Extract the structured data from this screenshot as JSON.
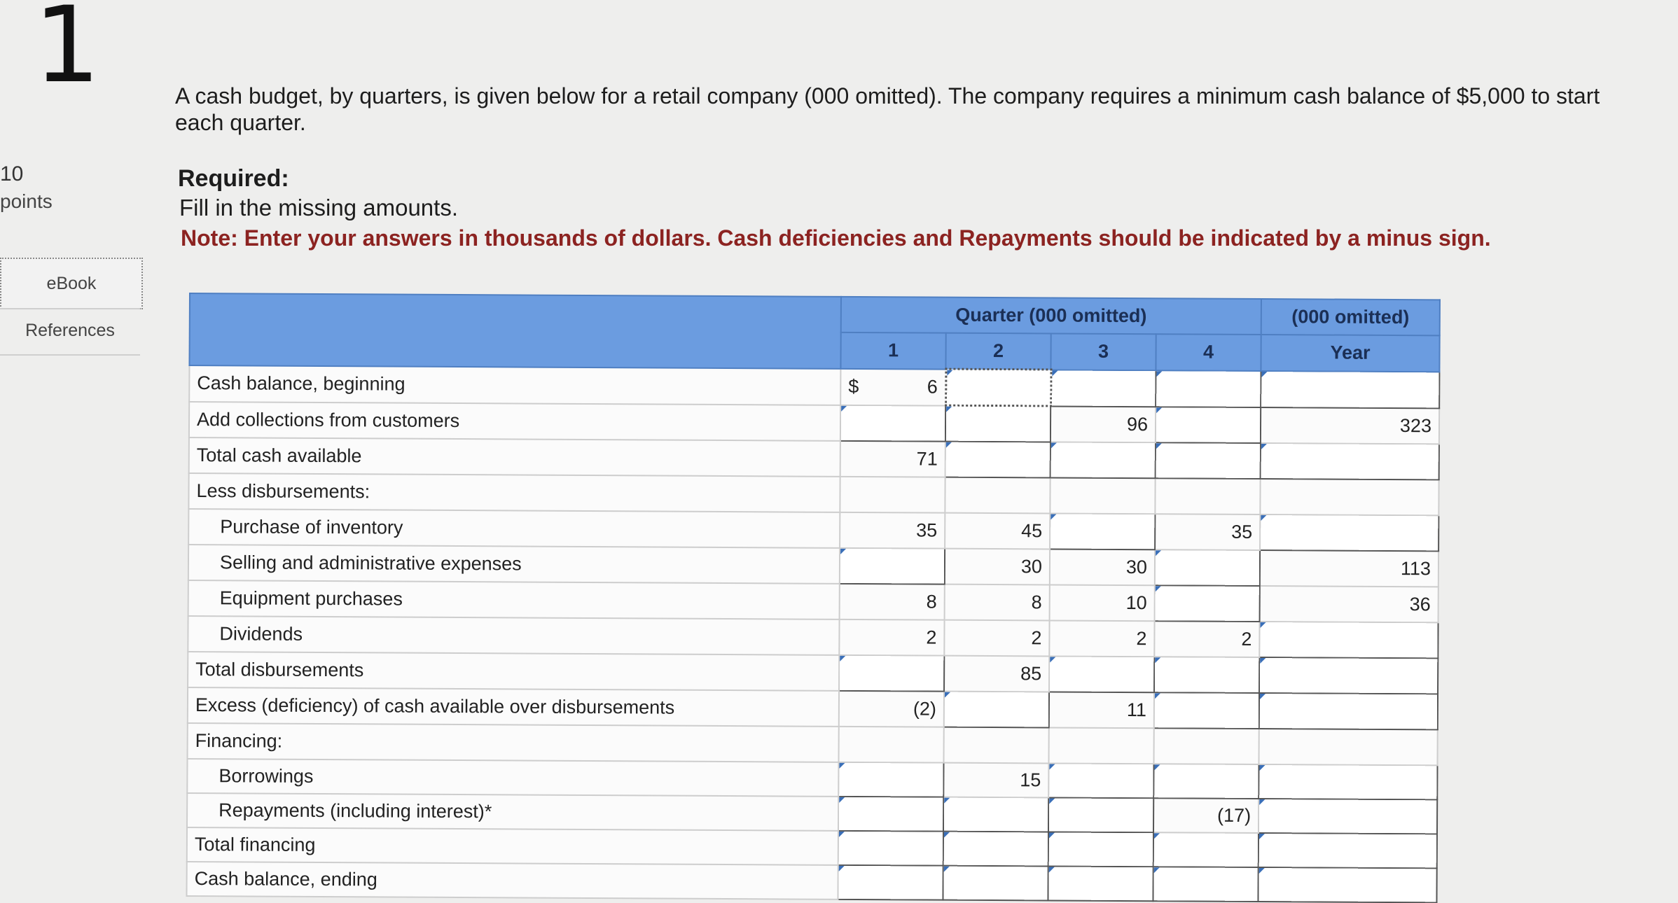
{
  "question": {
    "number": "1",
    "points_value": "10",
    "points_label": "points"
  },
  "sidebar": {
    "ebook": "eBook",
    "references": "References"
  },
  "prompt": "A cash budget, by quarters, is given below for a retail company (000 omitted). The company requires a minimum cash balance of $5,000 to start each quarter.",
  "required": {
    "heading": "Required:",
    "text": "Fill in the missing amounts.",
    "note": "Note: Enter your answers in thousands of dollars. Cash deficiencies and Repayments should be indicated by a minus sign."
  },
  "table": {
    "header_quarter": "Quarter (000 omitted)",
    "header_year_top": "(000 omitted)",
    "header_year": "Year",
    "quarters": [
      "1",
      "2",
      "3",
      "4"
    ],
    "currency": "$",
    "rows": [
      {
        "label": "Cash balance, beginning",
        "cells": [
          "6",
          "",
          "",
          "",
          ""
        ]
      },
      {
        "label": "Add collections from customers",
        "cells": [
          "",
          "",
          "96",
          "",
          "323"
        ]
      },
      {
        "label": "Total cash available",
        "cells": [
          "71",
          "",
          "",
          "",
          ""
        ]
      },
      {
        "label": "Less disbursements:",
        "cells": [
          "",
          "",
          "",
          "",
          ""
        ]
      },
      {
        "label": "Purchase of inventory",
        "cells": [
          "35",
          "45",
          "",
          "35",
          ""
        ]
      },
      {
        "label": "Selling and administrative expenses",
        "cells": [
          "",
          "30",
          "30",
          "",
          "113"
        ]
      },
      {
        "label": "Equipment purchases",
        "cells": [
          "8",
          "8",
          "10",
          "",
          "36"
        ]
      },
      {
        "label": "Dividends",
        "cells": [
          "2",
          "2",
          "2",
          "2",
          ""
        ]
      },
      {
        "label": "Total disbursements",
        "cells": [
          "",
          "85",
          "",
          "",
          ""
        ]
      },
      {
        "label": "Excess (deficiency) of cash available over disbursements",
        "cells": [
          "(2)",
          "",
          "11",
          "",
          ""
        ]
      },
      {
        "label": "Financing:",
        "cells": [
          "",
          "",
          "",
          "",
          ""
        ]
      },
      {
        "label": "Borrowings",
        "cells": [
          "",
          "15",
          "",
          "",
          ""
        ]
      },
      {
        "label": "Repayments (including interest)*",
        "cells": [
          "",
          "",
          "",
          "(17)",
          ""
        ]
      },
      {
        "label": "Total financing",
        "cells": [
          "",
          "",
          "",
          "",
          ""
        ]
      },
      {
        "label": "Cash balance, ending",
        "cells": [
          "",
          "",
          "",
          "",
          ""
        ]
      }
    ]
  }
}
